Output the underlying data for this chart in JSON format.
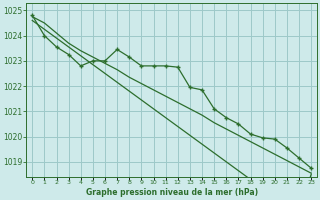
{
  "x": [
    0,
    1,
    2,
    3,
    4,
    5,
    6,
    7,
    8,
    9,
    10,
    11,
    12,
    13,
    14,
    15,
    16,
    17,
    18,
    19,
    20,
    21,
    22,
    23
  ],
  "main_line": [
    1024.8,
    1024.0,
    1023.55,
    1023.25,
    1022.8,
    1023.0,
    1023.0,
    1023.45,
    1023.15,
    1022.8,
    1022.8,
    1022.8,
    1022.75,
    1021.95,
    1021.85,
    1021.1,
    1020.75,
    1020.5,
    1020.1,
    1019.95,
    1019.9,
    1019.55,
    1019.15,
    1018.75
  ],
  "smooth_line1": [
    1024.6,
    1024.25,
    1023.9,
    1023.55,
    1023.2,
    1022.85,
    1022.5,
    1022.15,
    1021.8,
    1021.45,
    1021.1,
    1020.75,
    1020.4,
    1020.05,
    1019.7,
    1019.35,
    1019.0,
    1018.65,
    1018.3,
    1018.0,
    1017.7,
    1017.4,
    1017.1,
    1018.5
  ],
  "smooth_line2": [
    1024.75,
    1024.5,
    1024.1,
    1023.7,
    1023.4,
    1023.15,
    1022.9,
    1022.65,
    1022.35,
    1022.1,
    1021.85,
    1021.6,
    1021.35,
    1021.1,
    1020.85,
    1020.55,
    1020.3,
    1020.05,
    1019.8,
    1019.55,
    1019.3,
    1019.05,
    1018.8,
    1018.55
  ],
  "line_color": "#2d6e2d",
  "bg_color": "#ceeaea",
  "grid_color": "#9dc8c8",
  "xlabel": "Graphe pression niveau de la mer (hPa)",
  "ylim": [
    1018.4,
    1025.3
  ],
  "xlim": [
    -0.5,
    23.5
  ],
  "yticks": [
    1019,
    1020,
    1021,
    1022,
    1023,
    1024,
    1025
  ],
  "xtick_labels": [
    "0",
    "1",
    "2",
    "3",
    "4",
    "5",
    "6",
    "7",
    "8",
    "9",
    "10",
    "11",
    "12",
    "13",
    "14",
    "15",
    "16",
    "17",
    "18",
    "19",
    "20",
    "21",
    "22",
    "23"
  ]
}
